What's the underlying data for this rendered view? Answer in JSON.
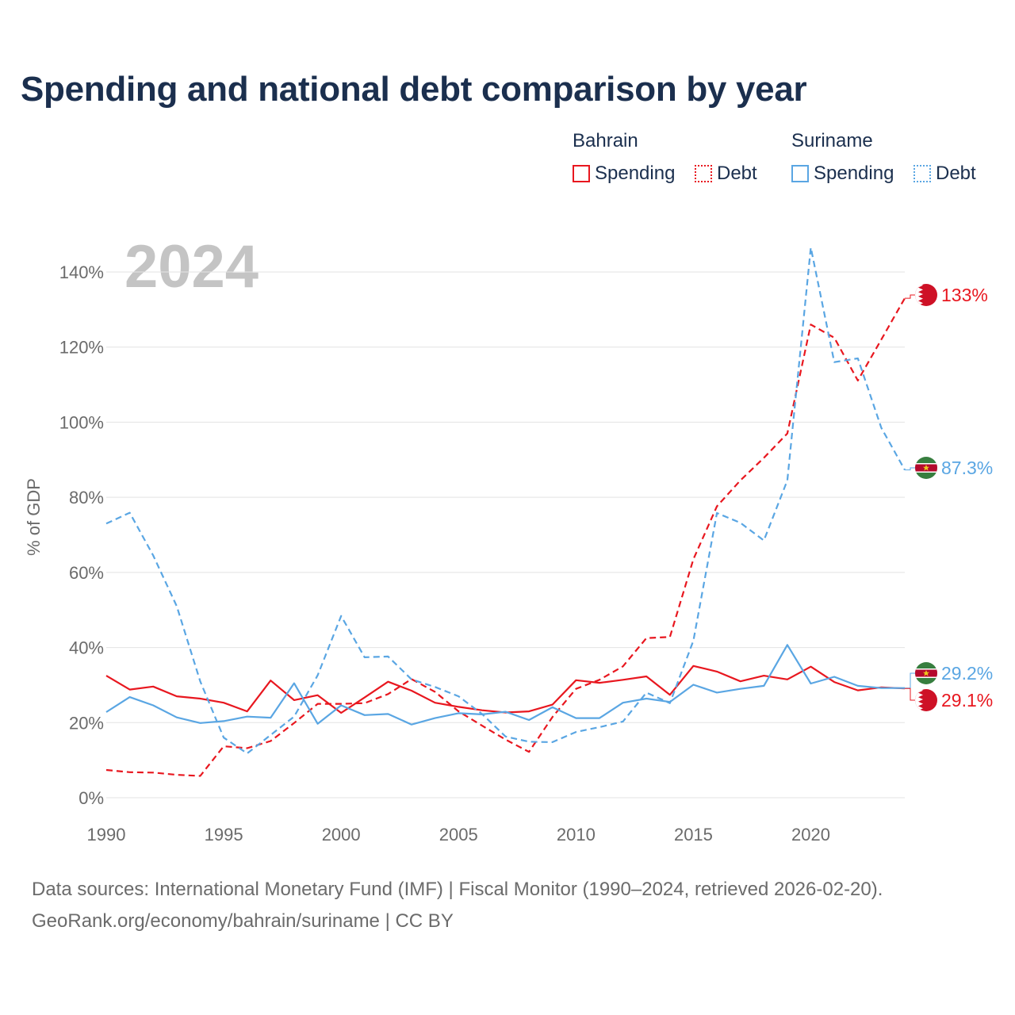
{
  "title": "Spending and national debt comparison by year",
  "year_watermark": "2024",
  "legend": {
    "groups": [
      {
        "country": "Bahrain",
        "color": "#e8171f",
        "items": [
          {
            "label": "Spending",
            "style": "solid"
          },
          {
            "label": "Debt",
            "style": "dotted"
          }
        ]
      },
      {
        "country": "Suriname",
        "color": "#5aa6e3",
        "items": [
          {
            "label": "Spending",
            "style": "solid"
          },
          {
            "label": "Debt",
            "style": "dotted"
          }
        ]
      }
    ]
  },
  "footer": {
    "line1": "Data sources: International Monetary Fund (IMF) | Fiscal Monitor (1990–2024, retrieved 2026-02-20).",
    "line2": "GeoRank.org/economy/bahrain/suriname | CC BY"
  },
  "end_labels": [
    {
      "text": "133%",
      "series": "Bahrain Debt",
      "color": "#e8171f",
      "flag": "bahrain-flag-icon"
    },
    {
      "text": "87.3%",
      "series": "Suriname Debt",
      "color": "#5aa6e3",
      "flag": "suriname-flag-icon"
    },
    {
      "text": "29.2%",
      "series": "Suriname Spending",
      "color": "#5aa6e3",
      "flag": "suriname-flag-icon"
    },
    {
      "text": "29.1%",
      "series": "Bahrain Spending",
      "color": "#e8171f",
      "flag": "bahrain-flag-icon"
    }
  ],
  "chart_data": {
    "type": "line",
    "title": "Spending and national debt comparison by year",
    "xlabel": "",
    "ylabel": "% of GDP",
    "x": [
      1990,
      1991,
      1992,
      1993,
      1994,
      1995,
      1996,
      1997,
      1998,
      1999,
      2000,
      2001,
      2002,
      2003,
      2004,
      2005,
      2006,
      2007,
      2008,
      2009,
      2010,
      2011,
      2012,
      2013,
      2014,
      2015,
      2016,
      2017,
      2018,
      2019,
      2020,
      2021,
      2022,
      2023,
      2024
    ],
    "xlim": [
      1990,
      2024
    ],
    "ylim": [
      0,
      140
    ],
    "x_ticks": [
      1990,
      1995,
      2000,
      2005,
      2010,
      2015,
      2020
    ],
    "y_ticks": [
      0,
      20,
      40,
      60,
      80,
      100,
      120,
      140
    ],
    "y_tick_labels": [
      "0%",
      "20%",
      "40%",
      "60%",
      "80%",
      "100%",
      "120%",
      "140%"
    ],
    "grid": true,
    "series": [
      {
        "name": "Bahrain Spending",
        "color": "#e8171f",
        "dash": "solid",
        "values": [
          32.5,
          28.8,
          29.6,
          27.0,
          26.4,
          25.3,
          23.0,
          31.2,
          26.0,
          27.3,
          22.6,
          26.7,
          30.9,
          28.5,
          25.3,
          24.2,
          23.3,
          22.7,
          23.0,
          24.8,
          31.3,
          30.6,
          31.4,
          32.3,
          27.4,
          35.1,
          33.6,
          31.0,
          32.5,
          31.5,
          34.9,
          30.8,
          28.6,
          29.4,
          29.1
        ]
      },
      {
        "name": "Bahrain Debt",
        "color": "#e8171f",
        "dash": "dashed",
        "values": [
          7.4,
          6.8,
          6.7,
          6.1,
          5.8,
          13.7,
          13.2,
          15.1,
          19.9,
          25.0,
          25.0,
          25.2,
          27.6,
          31.6,
          28.2,
          23.0,
          19.2,
          15.5,
          12.2,
          21.5,
          29.0,
          31.4,
          35.0,
          42.5,
          42.8,
          63.5,
          77.6,
          84.5,
          90.5,
          97.0,
          126.0,
          122.5,
          111.1,
          122.0,
          133.0
        ]
      },
      {
        "name": "Suriname Spending",
        "color": "#5aa6e3",
        "dash": "solid",
        "values": [
          22.8,
          26.8,
          24.6,
          21.4,
          19.9,
          20.4,
          21.6,
          21.3,
          30.5,
          19.7,
          24.6,
          22.0,
          22.3,
          19.5,
          21.2,
          22.5,
          22.2,
          22.9,
          20.7,
          24.1,
          21.2,
          21.2,
          25.3,
          26.4,
          25.5,
          30.1,
          28.0,
          29.0,
          29.8,
          40.7,
          30.4,
          32.2,
          29.8,
          29.2,
          29.2
        ]
      },
      {
        "name": "Suriname Debt",
        "color": "#5aa6e3",
        "dash": "dashed",
        "values": [
          73.0,
          75.9,
          64.5,
          51.0,
          31.0,
          16.0,
          11.8,
          16.7,
          21.6,
          32.6,
          48.4,
          37.4,
          37.6,
          31.5,
          29.5,
          27.0,
          22.3,
          16.3,
          14.9,
          14.8,
          17.5,
          18.8,
          20.3,
          28.0,
          25.2,
          41.8,
          75.8,
          73.2,
          68.5,
          84.5,
          146.5,
          116.0,
          117.0,
          98.5,
          87.3
        ]
      }
    ]
  }
}
